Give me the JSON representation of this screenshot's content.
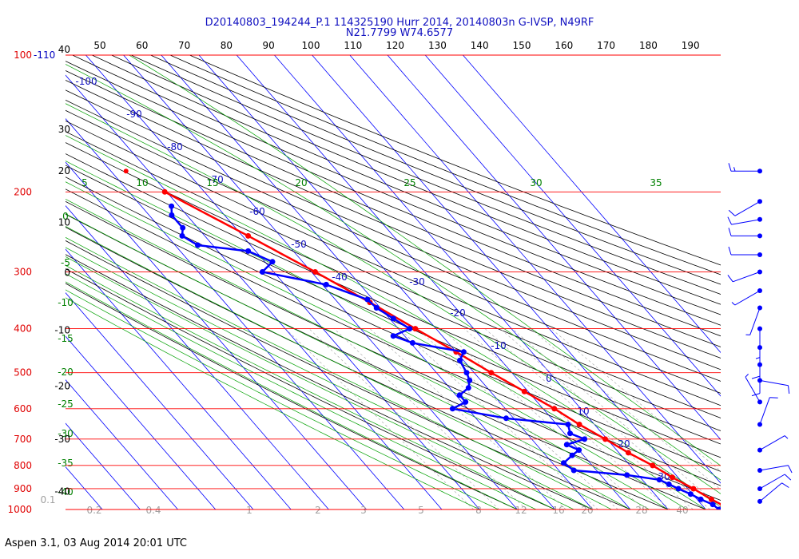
{
  "header": {
    "title_line1": "D20140803_194244_P.1 114325190 Hurr 2014, 20140803n G-IVSP, N49RF",
    "title_line2": "N21.7799 W74.6577"
  },
  "footer": {
    "text": "Aspen 3.1, 03 Aug 2014  20:01 UTC"
  },
  "colors": {
    "isobar": "#ff0000",
    "isotherm": "#0000ff",
    "dry_adiabat": "#000000",
    "moist_adiabat": "#00a000",
    "mixing_ratio": "#a0a0a0",
    "temperature": "#ff0000",
    "dewpoint": "#0000ff",
    "wind_barb": "#0000ff"
  },
  "chart_data": {
    "type": "line",
    "subtype": "skew-T log-P sounding",
    "pressure_ticks": [
      {
        "p": 100,
        "label": "100"
      },
      {
        "p": 200,
        "label": "200"
      },
      {
        "p": 300,
        "label": "300"
      },
      {
        "p": 400,
        "label": "400"
      },
      {
        "p": 500,
        "label": "500"
      },
      {
        "p": 600,
        "label": "600"
      },
      {
        "p": 700,
        "label": "700"
      },
      {
        "p": 800,
        "label": "800"
      },
      {
        "p": 900,
        "label": "900"
      },
      {
        "p": 1000,
        "label": "1000"
      }
    ],
    "top_label_extra": "-110",
    "top_theta_ticks": [
      "50",
      "60",
      "70",
      "80",
      "90",
      "100",
      "110",
      "120",
      "130",
      "140",
      "150",
      "160",
      "170",
      "180",
      "190"
    ],
    "height_ticks": [
      {
        "p": 100,
        "label": "40"
      },
      {
        "p": 150,
        "label": "30"
      },
      {
        "p": 185,
        "label": "20"
      },
      {
        "p": 240,
        "label": "10"
      },
      {
        "p": 310,
        "label": "0"
      },
      {
        "p": 415,
        "label": "-10"
      },
      {
        "p": 550,
        "label": "-20"
      },
      {
        "p": 720,
        "label": "-30"
      },
      {
        "p": 940,
        "label": "-40"
      }
    ],
    "isotherm_labels": [
      {
        "t": -100,
        "label": "-100"
      },
      {
        "t": -90,
        "label": "-90"
      },
      {
        "t": -80,
        "label": "-80"
      },
      {
        "t": -70,
        "label": "-70"
      },
      {
        "t": -60,
        "label": "-60"
      },
      {
        "t": -50,
        "label": "-50"
      },
      {
        "t": -40,
        "label": "-40"
      },
      {
        "t": -30,
        "label": "-30"
      },
      {
        "t": -20,
        "label": "-20"
      },
      {
        "t": -10,
        "label": "-10"
      },
      {
        "t": 0,
        "label": "0"
      },
      {
        "t": 10,
        "label": "10"
      },
      {
        "t": 20,
        "label": "20"
      },
      {
        "t": 30,
        "label": "30"
      }
    ],
    "moist_adiabat_labels_top": [
      "5",
      "10",
      "15",
      "20",
      "25",
      "30",
      "35"
    ],
    "moist_adiabat_labels_left": [
      "0",
      "-5",
      "-10",
      "-15",
      "-20",
      "-25",
      "-30",
      "-35",
      "-40"
    ],
    "mixing_ratio_labels": [
      "0.1",
      "0.2",
      "0.4",
      "1",
      "2",
      "3",
      "5",
      "8",
      "12",
      "16",
      "20",
      "28",
      "40"
    ],
    "temperature_profile": {
      "name": "Temperature",
      "points": [
        {
          "p": 1000,
          "t": 28.0
        },
        {
          "p": 980,
          "t": 25.5
        },
        {
          "p": 950,
          "t": 23.8
        },
        {
          "p": 900,
          "t": 21.5
        },
        {
          "p": 850,
          "t": 18.5
        },
        {
          "p": 800,
          "t": 16.0
        },
        {
          "p": 750,
          "t": 12.5
        },
        {
          "p": 700,
          "t": 9.5
        },
        {
          "p": 650,
          "t": 6.0
        },
        {
          "p": 600,
          "t": 3.0
        },
        {
          "p": 550,
          "t": -1.0
        },
        {
          "p": 500,
          "t": -5.5
        },
        {
          "p": 450,
          "t": -10.0
        },
        {
          "p": 400,
          "t": -15.5
        },
        {
          "p": 350,
          "t": -21.5
        },
        {
          "p": 300,
          "t": -29.0
        },
        {
          "p": 250,
          "t": -38.5
        },
        {
          "p": 200,
          "t": -50.5
        }
      ]
    },
    "temperature_isolated_point": {
      "p": 180,
      "t": -56.0
    },
    "dewpoint_profile": {
      "name": "Dewpoint",
      "points": [
        {
          "p": 1000,
          "t": 23.5
        },
        {
          "p": 975,
          "t": 23.0
        },
        {
          "p": 950,
          "t": 21.0
        },
        {
          "p": 925,
          "t": 19.5
        },
        {
          "p": 900,
          "t": 17.5
        },
        {
          "p": 880,
          "t": 16.0
        },
        {
          "p": 860,
          "t": 14.5
        },
        {
          "p": 840,
          "t": 7.0
        },
        {
          "p": 820,
          "t": -6.0
        },
        {
          "p": 790,
          "t": -7.0
        },
        {
          "p": 760,
          "t": -3.0
        },
        {
          "p": 740,
          "t": 0.0
        },
        {
          "p": 720,
          "t": -2.0
        },
        {
          "p": 700,
          "t": 4.0
        },
        {
          "p": 680,
          "t": 1.5
        },
        {
          "p": 650,
          "t": 3.0
        },
        {
          "p": 630,
          "t": -12.0
        },
        {
          "p": 600,
          "t": -24.0
        },
        {
          "p": 580,
          "t": -19.0
        },
        {
          "p": 560,
          "t": -19.0
        },
        {
          "p": 540,
          "t": -15.0
        },
        {
          "p": 520,
          "t": -13.0
        },
        {
          "p": 500,
          "t": -12.0
        },
        {
          "p": 470,
          "t": -11.0
        },
        {
          "p": 450,
          "t": -8.0
        },
        {
          "p": 430,
          "t": -19.5
        },
        {
          "p": 415,
          "t": -23.0
        },
        {
          "p": 400,
          "t": -17.0
        },
        {
          "p": 380,
          "t": -19.0
        },
        {
          "p": 360,
          "t": -21.0
        },
        {
          "p": 345,
          "t": -21.5
        },
        {
          "p": 320,
          "t": -29.0
        },
        {
          "p": 300,
          "t": -43.0
        },
        {
          "p": 285,
          "t": -38.0
        },
        {
          "p": 270,
          "t": -42.0
        },
        {
          "p": 262,
          "t": -54.0
        },
        {
          "p": 250,
          "t": -56.0
        },
        {
          "p": 240,
          "t": -54.0
        },
        {
          "p": 225,
          "t": -54.0
        },
        {
          "p": 215,
          "t": -52.0
        }
      ]
    },
    "wind_barbs": [
      {
        "p": 180,
        "dir": 270,
        "kt": 15
      },
      {
        "p": 210,
        "dir": 240,
        "kt": 10
      },
      {
        "p": 230,
        "dir": 260,
        "kt": 10
      },
      {
        "p": 250,
        "dir": 270,
        "kt": 10
      },
      {
        "p": 275,
        "dir": 270,
        "kt": 10
      },
      {
        "p": 300,
        "dir": 250,
        "kt": 10
      },
      {
        "p": 330,
        "dir": 240,
        "kt": 5
      },
      {
        "p": 360,
        "dir": 200,
        "kt": 5
      },
      {
        "p": 400,
        "dir": 180,
        "kt": 5
      },
      {
        "p": 440,
        "dir": 180,
        "kt": 10
      },
      {
        "p": 480,
        "dir": 180,
        "kt": 10
      },
      {
        "p": 520,
        "dir": 100,
        "kt": 10
      },
      {
        "p": 580,
        "dir": 330,
        "kt": 5
      },
      {
        "p": 650,
        "dir": 20,
        "kt": 10
      },
      {
        "p": 740,
        "dir": 60,
        "kt": 5
      },
      {
        "p": 820,
        "dir": 80,
        "kt": 10
      },
      {
        "p": 900,
        "dir": 60,
        "kt": 10
      },
      {
        "p": 960,
        "dir": 50,
        "kt": 10
      }
    ]
  }
}
